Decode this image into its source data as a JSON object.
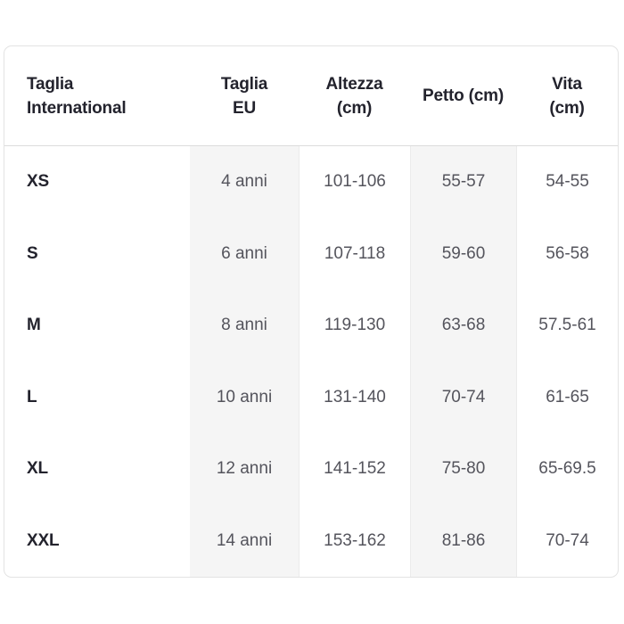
{
  "table": {
    "headers": {
      "international": "Taglia\nInternational",
      "eu": "Taglia\nEU",
      "height": "Altezza\n(cm)",
      "chest": "Petto (cm)",
      "waist": "Vita\n(cm)"
    },
    "rows": [
      {
        "size": "XS",
        "eu": "4 anni",
        "height": "101-106",
        "chest": "55-57",
        "waist": "54-55"
      },
      {
        "size": "S",
        "eu": "6 anni",
        "height": "107-118",
        "chest": "59-60",
        "waist": "56-58"
      },
      {
        "size": "M",
        "eu": "8 anni",
        "height": "119-130",
        "chest": "63-68",
        "waist": "57.5-61"
      },
      {
        "size": "L",
        "eu": "10 anni",
        "height": "131-140",
        "chest": "70-74",
        "waist": "61-65"
      },
      {
        "size": "XL",
        "eu": "12 anni",
        "height": "141-152",
        "chest": "75-80",
        "waist": "65-69.5"
      },
      {
        "size": "XXL",
        "eu": "14 anni",
        "height": "153-162",
        "chest": "81-86",
        "waist": "70-74"
      }
    ],
    "colors": {
      "header_text": "#23232d",
      "value_text": "#54545c",
      "column_stripe": "#f5f5f5",
      "card_border": "#e3e3e3",
      "divider": "#ebebeb"
    }
  }
}
